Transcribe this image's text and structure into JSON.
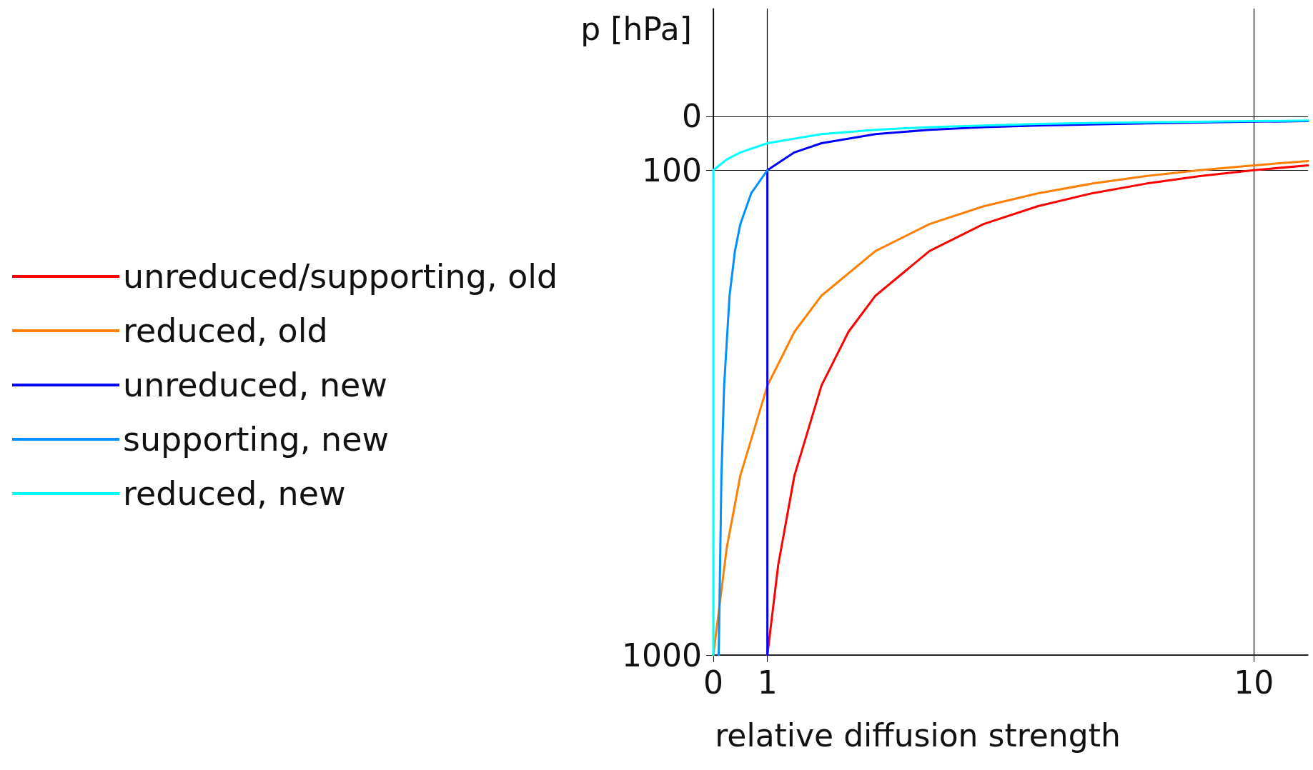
{
  "chart_data": {
    "type": "line",
    "xlabel": "relative diffusion strength",
    "ylabel": "p [hPa]",
    "xlim": [
      0,
      11
    ],
    "xticks": [
      0,
      1,
      10
    ],
    "ylim": [
      1000,
      -200
    ],
    "yticks": [
      0,
      100,
      1000
    ],
    "grid": true,
    "legend": "left",
    "marker": "none",
    "line_style": "solid",
    "series": [
      {
        "name": "unreduced/supporting, old",
        "color": "#ff0000",
        "x": [
          1,
          1.2,
          1.5,
          2,
          2.5,
          3,
          4,
          5,
          6,
          7,
          8,
          9,
          10,
          11
        ],
        "values": [
          1000,
          833,
          667,
          500,
          400,
          333,
          250,
          200,
          167,
          143,
          125,
          111,
          100,
          91
        ]
      },
      {
        "name": "reduced, old",
        "color": "#ff8000",
        "x": [
          0,
          0.25,
          0.5,
          1,
          1.5,
          2,
          3,
          4,
          5,
          6,
          7,
          8,
          9,
          10,
          11
        ],
        "values": [
          1000,
          800,
          667,
          500,
          400,
          333,
          250,
          200,
          167,
          143,
          125,
          111,
          100,
          91,
          83
        ]
      },
      {
        "name": "unreduced, new",
        "color": "#0000ff",
        "x": [
          1,
          1,
          1.5,
          2,
          3,
          4,
          5,
          6,
          8,
          10,
          11
        ],
        "values": [
          1000,
          100,
          67,
          50,
          33,
          25,
          20,
          17,
          13,
          10,
          9
        ]
      },
      {
        "name": "supporting, new",
        "color": "#0090ff",
        "x": [
          0.1,
          0.15,
          0.2,
          0.3,
          0.4,
          0.5,
          0.7,
          1
        ],
        "values": [
          1000,
          667,
          500,
          333,
          250,
          200,
          143,
          100
        ]
      },
      {
        "name": "reduced, new",
        "color": "#00ffff",
        "x": [
          0,
          0,
          0.25,
          0.5,
          1,
          2,
          3,
          4,
          6,
          8,
          11
        ],
        "values": [
          1000,
          100,
          80,
          67,
          50,
          33,
          25,
          20,
          14,
          11,
          8
        ]
      }
    ]
  }
}
